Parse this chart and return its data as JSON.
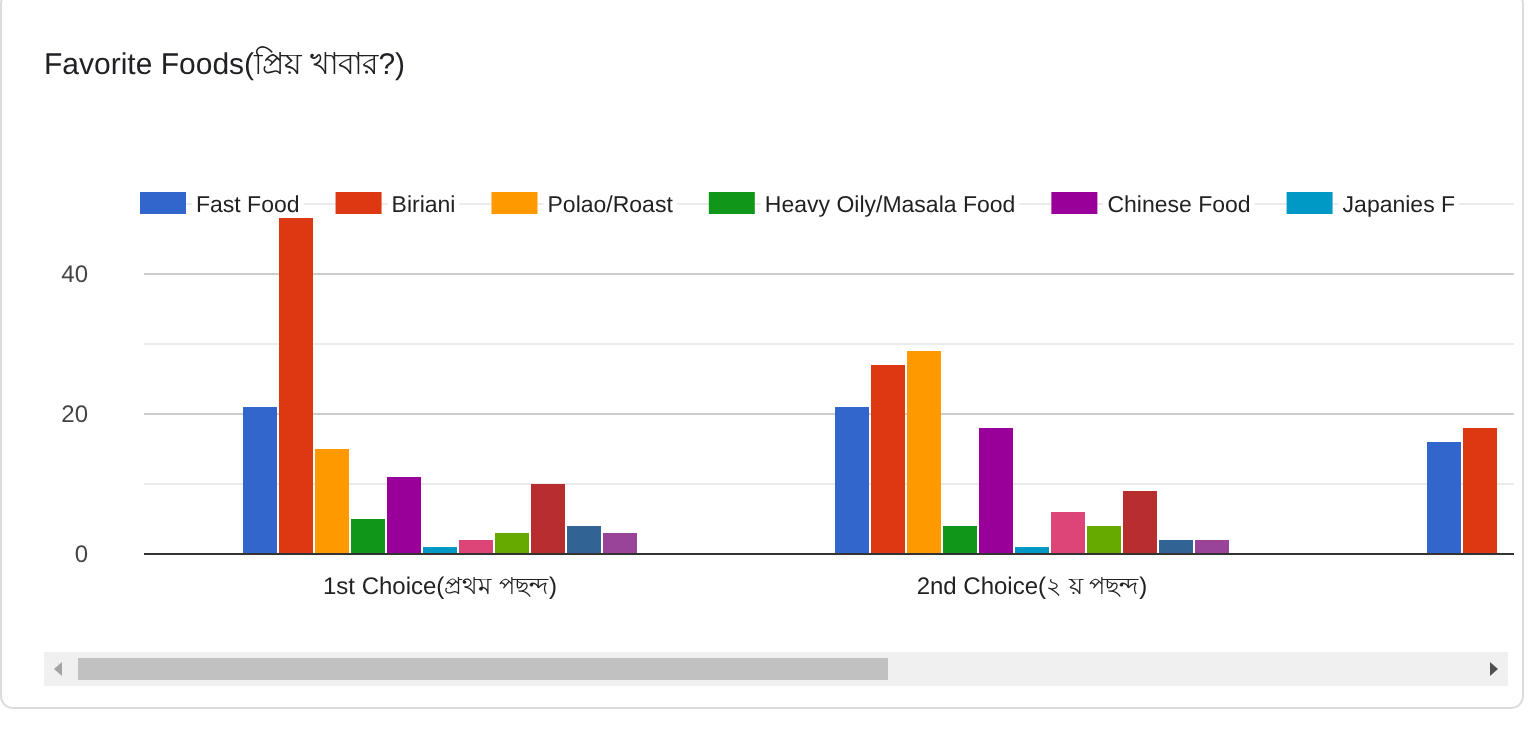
{
  "chart_data": {
    "type": "bar",
    "title": "Favorite Foods(প্রিয় খাবার?)",
    "categories": [
      "1st Choice(প্রথম পছন্দ)",
      "2nd Choice(২ য় পছন্দ)",
      null
    ],
    "ylim": [
      0,
      50
    ],
    "yticks": [
      0,
      {
        "value": 10,
        "label": null
      },
      20,
      {
        "value": 30,
        "label": null
      },
      40,
      {
        "value": 50,
        "label": null
      }
    ],
    "grid": "y",
    "legend": "top",
    "series": [
      {
        "name": "Fast Food",
        "color": "#3366cc",
        "values": [
          21,
          21,
          16
        ]
      },
      {
        "name": "Biriani",
        "color": "#dc3912",
        "values": [
          48,
          27,
          18
        ]
      },
      {
        "name": "Polao/Roast",
        "color": "#ff9900",
        "values": [
          15,
          29,
          null
        ]
      },
      {
        "name": "Heavy Oily/Masala Food",
        "color": "#109618",
        "values": [
          5,
          4,
          null
        ]
      },
      {
        "name": "Chinese Food",
        "color": "#990099",
        "values": [
          11,
          18,
          null
        ]
      },
      {
        "name": "Japanies F",
        "color": "#0099c6",
        "values": [
          1,
          1,
          null
        ]
      },
      {
        "color": "#dd4477",
        "values": [
          2,
          6,
          null
        ]
      },
      {
        "color": "#66aa00",
        "values": [
          3,
          4,
          null
        ]
      },
      {
        "color": "#b82e2e",
        "values": [
          10,
          9,
          null
        ]
      },
      {
        "color": "#316395",
        "values": [
          4,
          2,
          null
        ]
      },
      {
        "color": "#994499",
        "values": [
          3,
          2,
          null
        ]
      }
    ]
  }
}
